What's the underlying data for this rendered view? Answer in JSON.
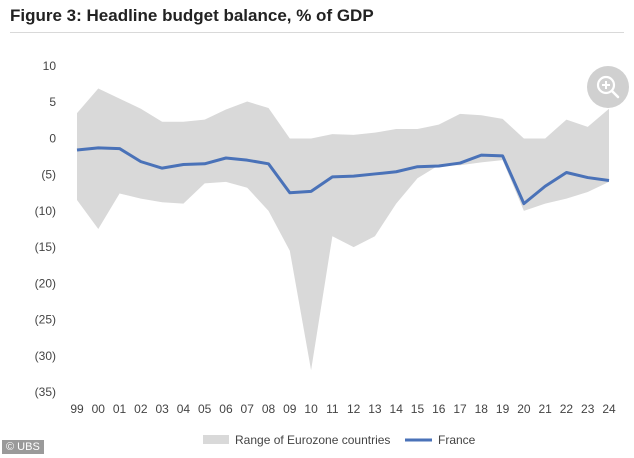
{
  "title": "Figure 3: Headline budget balance, % of GDP",
  "credit": "© UBS",
  "colors": {
    "range": "#d9d9d9",
    "france": "#4a72b8"
  },
  "icons": {
    "zoom": "zoom-in-icon"
  },
  "chart_data": {
    "type": "area",
    "title": "Figure 3: Headline budget balance, % of GDP",
    "xlabel": "",
    "ylabel": "",
    "ylim": [
      -35,
      10
    ],
    "yticks": [
      10,
      5,
      0,
      -5,
      -10,
      -15,
      -20,
      -25,
      -30,
      -35
    ],
    "ytick_labels": [
      "10",
      "5",
      "0",
      "(5)",
      "(10)",
      "(15)",
      "(20)",
      "(25)",
      "(30)",
      "(35)"
    ],
    "categories": [
      "99",
      "00",
      "01",
      "02",
      "03",
      "04",
      "05",
      "06",
      "07",
      "08",
      "09",
      "10",
      "11",
      "12",
      "13",
      "14",
      "15",
      "16",
      "17",
      "18",
      "19",
      "20",
      "21",
      "22",
      "23",
      "24"
    ],
    "grid": false,
    "legend_position": "bottom",
    "series": [
      {
        "name": "Range of Eurozone countries",
        "kind": "band",
        "max": [
          3.5,
          6.9,
          5.5,
          4.1,
          2.3,
          2.3,
          2.6,
          4.0,
          5.1,
          4.2,
          0.0,
          0.0,
          0.6,
          0.5,
          0.8,
          1.3,
          1.3,
          1.9,
          3.4,
          3.2,
          2.7,
          0.0,
          0.0,
          2.6,
          1.6,
          4.1
        ],
        "min": [
          -8.5,
          -12.5,
          -7.6,
          -8.3,
          -8.8,
          -9.0,
          -6.2,
          -6.0,
          -6.8,
          -10.0,
          -15.5,
          -32.0,
          -13.5,
          -15.0,
          -13.5,
          -9.0,
          -5.5,
          -3.7,
          -3.7,
          -3.3,
          -3.0,
          -10.0,
          -9.0,
          -8.3,
          -7.4,
          -6.0
        ]
      },
      {
        "name": "France",
        "kind": "line",
        "values": [
          -1.6,
          -1.3,
          -1.4,
          -3.2,
          -4.1,
          -3.6,
          -3.5,
          -2.7,
          -3.0,
          -3.5,
          -7.5,
          -7.3,
          -5.3,
          -5.2,
          -4.9,
          -4.6,
          -3.9,
          -3.8,
          -3.4,
          -2.3,
          -2.4,
          -9.0,
          -6.6,
          -4.7,
          -5.4,
          -5.8
        ]
      }
    ]
  }
}
